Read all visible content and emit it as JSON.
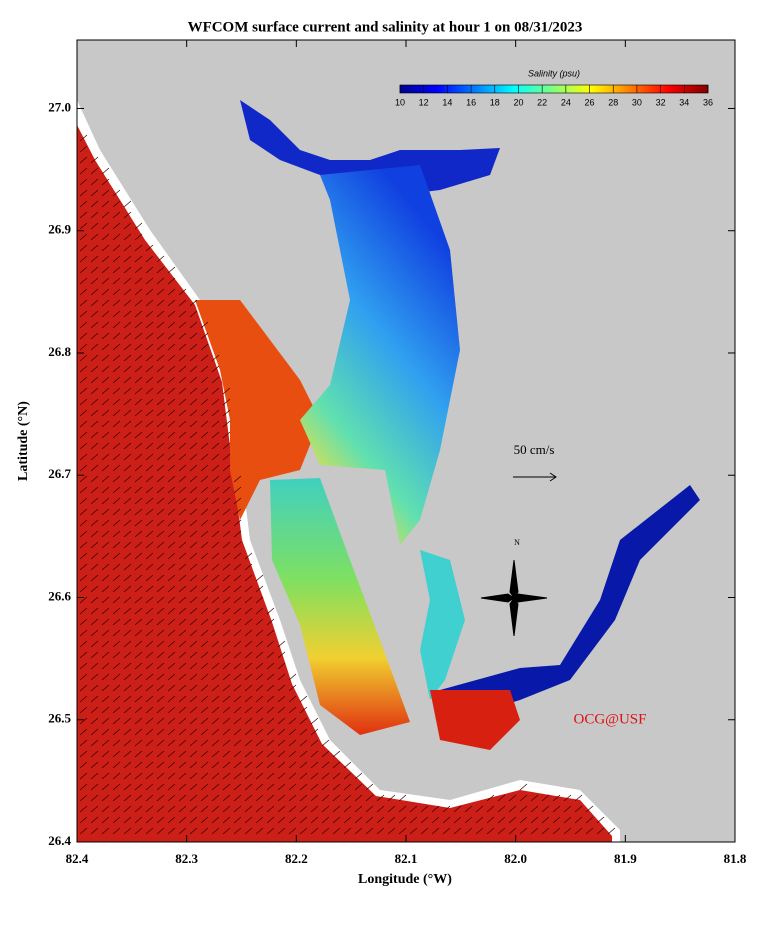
{
  "title": "WFCOM surface current and salinity at hour 1 on 08/31/2023",
  "x_axis": {
    "label": "Longitude (°W)",
    "lim": [
      82.4,
      81.8
    ],
    "ticks": [
      82.4,
      82.3,
      82.2,
      82.1,
      {
        "value": 82,
        "label": "82.0"
      },
      81.9,
      81.8
    ]
  },
  "y_axis": {
    "label": "Latitude (°N)",
    "lim": [
      26.4,
      27.056
    ],
    "ticks": [
      26.4,
      26.5,
      26.6,
      26.7,
      26.8,
      26.9,
      {
        "value": 27,
        "label": "27.0"
      }
    ]
  },
  "colorbar": {
    "title": "Salinity (psu)",
    "lim": [
      10,
      36
    ],
    "ticks": [
      10,
      12,
      14,
      16,
      18,
      20,
      22,
      24,
      26,
      28,
      30,
      32,
      34,
      36
    ]
  },
  "scale_label": "50 cm/s",
  "compass_label": "N",
  "credit": "OCG@USF"
}
